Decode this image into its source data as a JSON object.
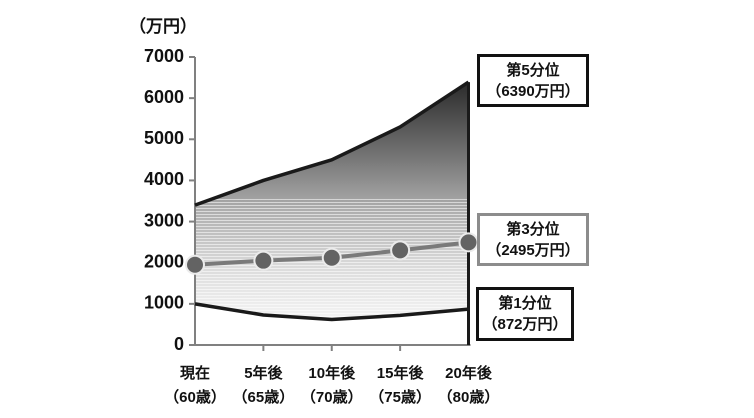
{
  "page": {
    "background": "#ffffff"
  },
  "chart_data": {
    "type": "area",
    "y_unit_label": "（万円）",
    "categories": [
      {
        "label": "現在",
        "age": "（60歳）"
      },
      {
        "label": "5年後",
        "age": "（65歳）"
      },
      {
        "label": "10年後",
        "age": "（70歳）"
      },
      {
        "label": "15年後",
        "age": "（75歳）"
      },
      {
        "label": "20年後",
        "age": "（80歳）"
      }
    ],
    "series": [
      {
        "name": "第5分位",
        "role": "upper-bound",
        "values": [
          3400,
          4000,
          4500,
          5300,
          6390
        ],
        "line_color": "#1a1a1a",
        "marker": false
      },
      {
        "name": "第3分位",
        "role": "median",
        "values": [
          1950,
          2050,
          2120,
          2300,
          2495
        ],
        "line_color": "#7a7a7a",
        "marker": true
      },
      {
        "name": "第1分位",
        "role": "lower-bound",
        "values": [
          1000,
          730,
          620,
          720,
          872
        ],
        "line_color": "#1a1a1a",
        "marker": false
      }
    ],
    "ylim": [
      0,
      7000
    ],
    "ytick_step": 1000,
    "grid": false,
    "legend_position": "right-callouts",
    "band_fill": {
      "top_color": "#2b2b2b",
      "mid_color": "#adadad",
      "bottom_color": "#f8f8f8"
    },
    "marker_style": {
      "fill": "#636363",
      "stroke": "#ebebeb"
    },
    "axis_color": "#808080",
    "tick_label_color": "#111111",
    "annotations": [
      {
        "label": "第5分位",
        "value": "（6390万円）",
        "border_color": "#111111"
      },
      {
        "label": "第3分位",
        "value": "（2495万円）",
        "border_color": "#8c8c8c"
      },
      {
        "label": "第1分位",
        "value": "（872万円）",
        "border_color": "#111111"
      }
    ]
  }
}
